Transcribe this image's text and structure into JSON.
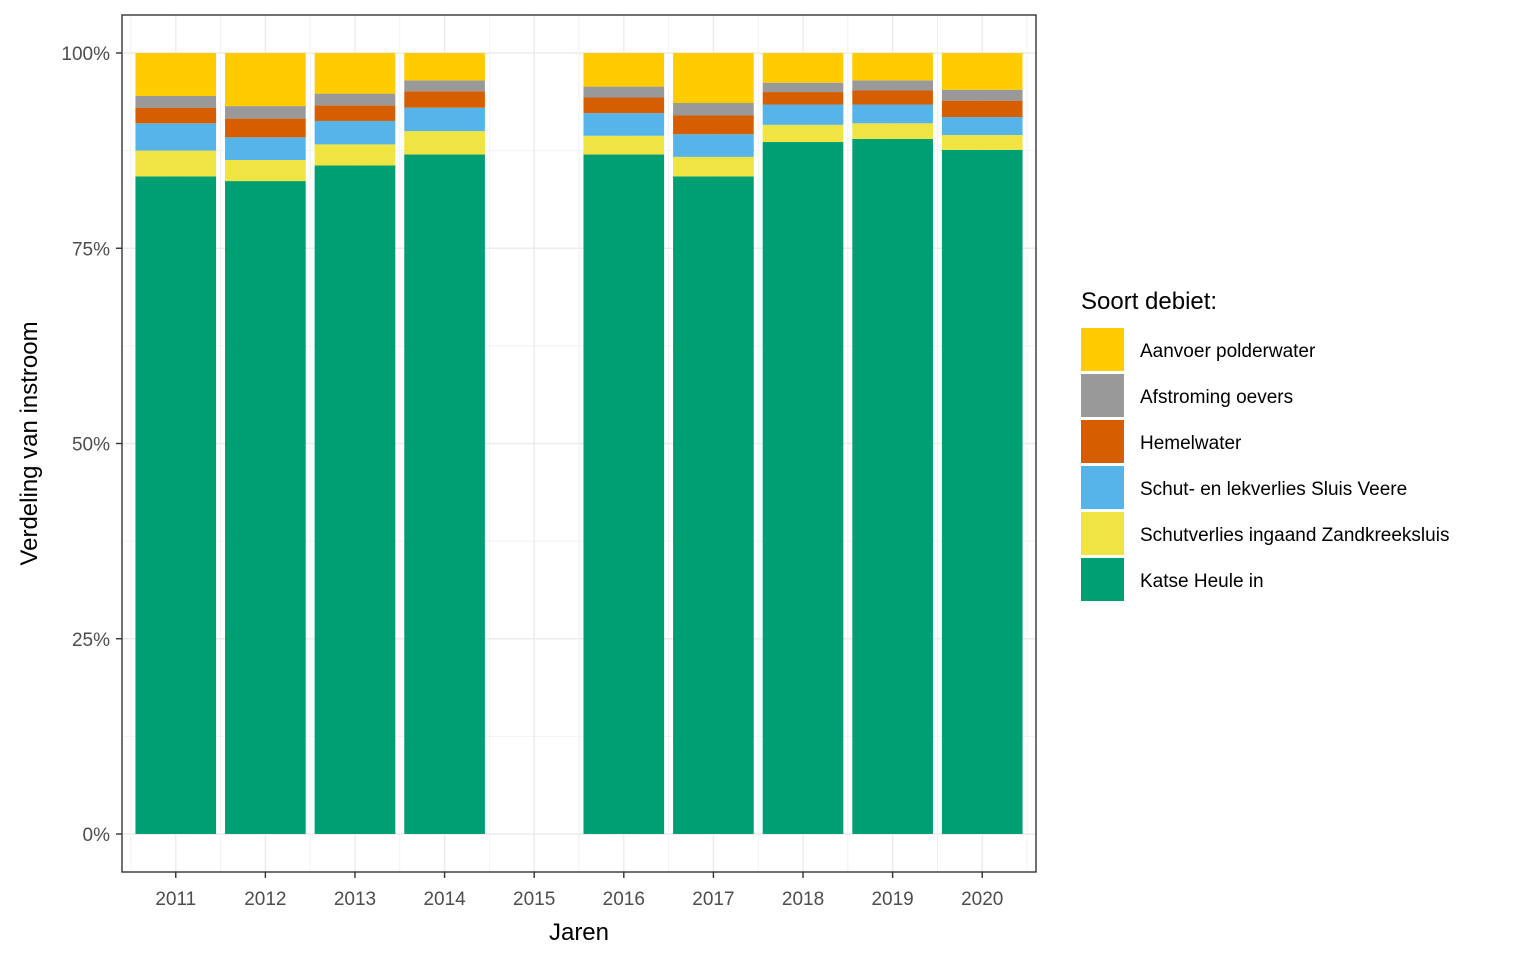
{
  "chart_data": {
    "type": "bar",
    "stacked": true,
    "percent": true,
    "title": "",
    "xlabel": "Jaren",
    "ylabel": "Verdeling van instroom",
    "ylim": [
      0,
      1
    ],
    "yticks": [
      0,
      0.25,
      0.5,
      0.75,
      1.0
    ],
    "ytick_labels": [
      "0%",
      "25%",
      "50%",
      "75%",
      "100%"
    ],
    "categories": [
      "2011",
      "2012",
      "2013",
      "2014",
      "2015",
      "2016",
      "2017",
      "2018",
      "2019",
      "2020"
    ],
    "legend_title": "Soort debiet:",
    "legend_position": "right",
    "series": [
      {
        "name": "Katse Heule in",
        "color": "#009E73",
        "values": [
          0.842,
          0.836,
          0.856,
          0.87,
          null,
          0.87,
          0.842,
          0.886,
          0.89,
          0.876
        ]
      },
      {
        "name": "Schutverlies ingaand Zandkreeksluis",
        "color": "#F0E442",
        "values": [
          0.033,
          0.027,
          0.027,
          0.03,
          null,
          0.024,
          0.025,
          0.022,
          0.02,
          0.019
        ]
      },
      {
        "name": "Schut- en lekverlies Sluis Veere",
        "color": "#56B4E9",
        "values": [
          0.035,
          0.029,
          0.03,
          0.03,
          null,
          0.029,
          0.029,
          0.026,
          0.024,
          0.023
        ]
      },
      {
        "name": "Hemelwater",
        "color": "#D55E00",
        "values": [
          0.02,
          0.024,
          0.02,
          0.021,
          null,
          0.02,
          0.024,
          0.016,
          0.018,
          0.021
        ]
      },
      {
        "name": "Afstroming oevers",
        "color": "#999999",
        "values": [
          0.015,
          0.016,
          0.015,
          0.014,
          null,
          0.014,
          0.016,
          0.012,
          0.013,
          0.014
        ]
      },
      {
        "name": "Aanvoer polderwater",
        "color": "#FFCC00",
        "values": [
          0.055,
          0.068,
          0.052,
          0.035,
          null,
          0.043,
          0.064,
          0.038,
          0.035,
          0.047
        ]
      }
    ],
    "legend_order": [
      "Aanvoer polderwater",
      "Afstroming oevers",
      "Hemelwater",
      "Schut- en lekverlies Sluis Veere",
      "Schutverlies ingaand Zandkreeksluis",
      "Katse Heule in"
    ]
  }
}
